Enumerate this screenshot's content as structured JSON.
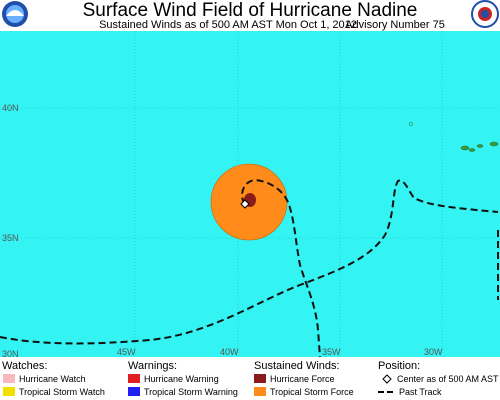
{
  "header": {
    "title": "Surface Wind Field of Hurricane Nadine",
    "subtitle": "Sustained Winds as of 500 AM AST Mon Oct 1, 2012",
    "advisory": "Advisory Number 75"
  },
  "map": {
    "lat_labels": [
      "40N",
      "35N",
      "30N"
    ],
    "lon_labels": [
      "45W",
      "40W",
      "35W",
      "30W"
    ]
  },
  "legend": {
    "watches": {
      "title": "Watches:",
      "items": [
        "Hurricane Watch",
        "Tropical Storm Watch"
      ]
    },
    "warnings": {
      "title": "Warnings:",
      "items": [
        "Hurricane Warning",
        "Tropical Storm Warning"
      ]
    },
    "winds": {
      "title": "Sustained Winds:",
      "items": [
        "Hurricane Force",
        "Tropical Storm Force"
      ]
    },
    "position": {
      "title": "Position:",
      "items": [
        "Center as of 500 AM AST",
        "Past Track"
      ]
    }
  }
}
